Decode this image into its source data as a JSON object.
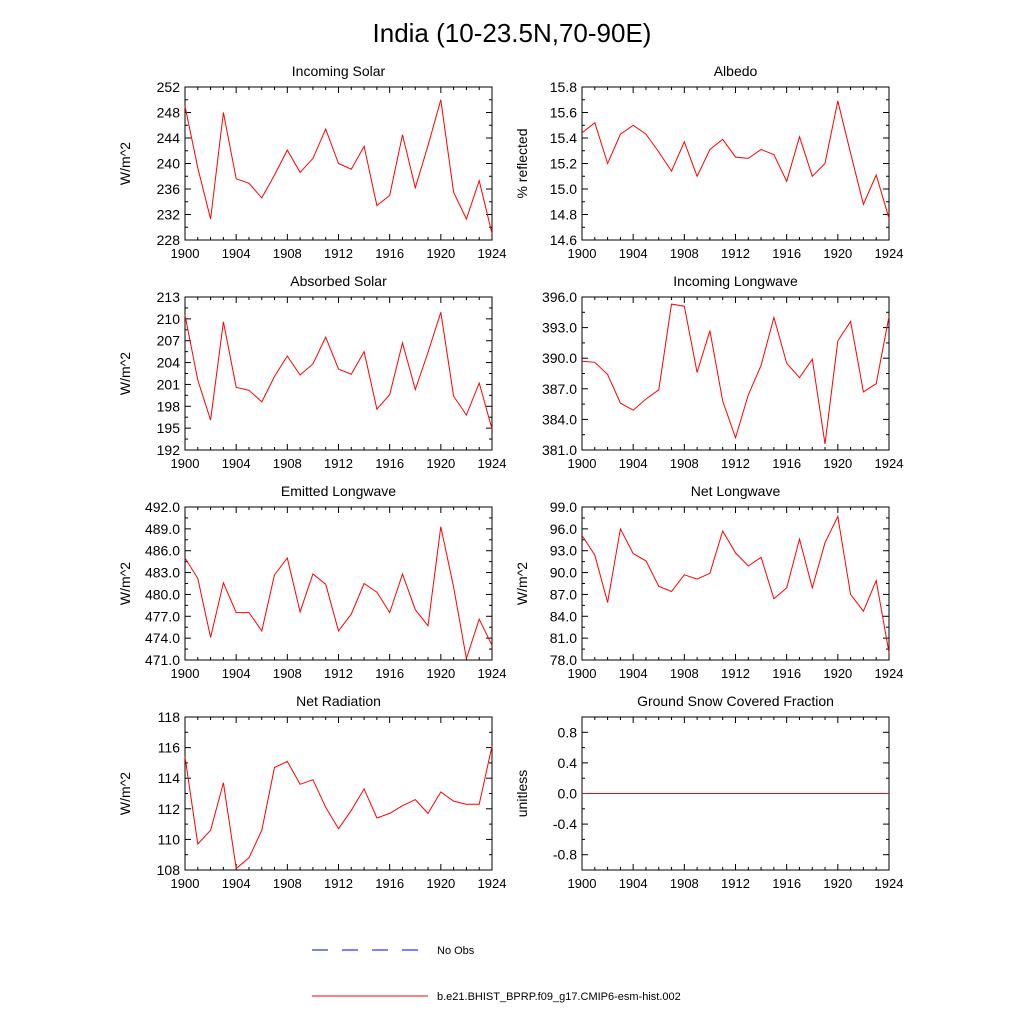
{
  "figure": {
    "title": "India (10-23.5N,70-90E)",
    "line_color": "#ff0000",
    "obs_color": "#0000ff"
  },
  "legend": {
    "obs_label": "No Obs",
    "model_label": "b.e21.BHIST_BPRP.f09_g17.CMIP6-esm-hist.002"
  },
  "chart_data": [
    {
      "type": "line",
      "title": "Incoming Solar",
      "ylabel": "W/m^2",
      "xlabel": "",
      "xlim": [
        1900,
        1924
      ],
      "ylim": [
        228,
        252
      ],
      "xticks": [
        "1900",
        "1904",
        "1908",
        "1912",
        "1916",
        "1920",
        "1924"
      ],
      "yticks": [
        "228",
        "232",
        "236",
        "240",
        "244",
        "248",
        "252"
      ],
      "x": [
        1900,
        1901,
        1902,
        1903,
        1904,
        1905,
        1906,
        1907,
        1908,
        1909,
        1910,
        1911,
        1912,
        1913,
        1914,
        1915,
        1916,
        1917,
        1918,
        1919,
        1920,
        1921,
        1922,
        1923,
        1924
      ],
      "values": [
        249.0,
        239.3,
        231.3,
        248.0,
        237.6,
        236.9,
        234.6,
        238.2,
        242.1,
        238.6,
        240.8,
        245.4,
        240.0,
        239.1,
        242.7,
        233.4,
        235.0,
        244.5,
        236.2,
        242.8,
        250.0,
        235.5,
        231.3,
        237.3,
        229.0
      ]
    },
    {
      "type": "line",
      "title": "Albedo",
      "ylabel": "% reflected",
      "xlabel": "",
      "xlim": [
        1900,
        1924
      ],
      "ylim": [
        14.6,
        15.8
      ],
      "xticks": [
        "1900",
        "1904",
        "1908",
        "1912",
        "1916",
        "1920",
        "1924"
      ],
      "yticks": [
        "14.6",
        "14.8",
        "15.0",
        "15.2",
        "15.4",
        "15.6",
        "15.8"
      ],
      "x": [
        1900,
        1901,
        1902,
        1903,
        1904,
        1905,
        1906,
        1907,
        1908,
        1909,
        1910,
        1911,
        1912,
        1913,
        1914,
        1915,
        1916,
        1917,
        1918,
        1919,
        1920,
        1921,
        1922,
        1923,
        1924
      ],
      "values": [
        15.44,
        15.52,
        15.2,
        15.43,
        15.5,
        15.43,
        15.29,
        15.14,
        15.37,
        15.1,
        15.31,
        15.39,
        15.25,
        15.24,
        15.31,
        15.27,
        15.06,
        15.41,
        15.1,
        15.2,
        15.69,
        15.28,
        14.88,
        15.11,
        14.77
      ]
    },
    {
      "type": "line",
      "title": "Absorbed Solar",
      "ylabel": "W/m^2",
      "xlabel": "",
      "xlim": [
        1900,
        1924
      ],
      "ylim": [
        192,
        213
      ],
      "xticks": [
        "1900",
        "1904",
        "1908",
        "1912",
        "1916",
        "1920",
        "1924"
      ],
      "yticks": [
        "192",
        "195",
        "198",
        "201",
        "204",
        "207",
        "210",
        "213"
      ],
      "x": [
        1900,
        1901,
        1902,
        1903,
        1904,
        1905,
        1906,
        1907,
        1908,
        1909,
        1910,
        1911,
        1912,
        1913,
        1914,
        1915,
        1916,
        1917,
        1918,
        1919,
        1920,
        1921,
        1922,
        1923,
        1924
      ],
      "values": [
        210.5,
        201.6,
        196.1,
        209.6,
        200.6,
        200.2,
        198.6,
        202.1,
        204.9,
        202.3,
        203.8,
        207.5,
        203.1,
        202.4,
        205.5,
        197.6,
        199.6,
        206.7,
        200.3,
        205.4,
        210.9,
        199.4,
        196.8,
        201.2,
        194.9
      ]
    },
    {
      "type": "line",
      "title": "Incoming Longwave",
      "ylabel": "",
      "xlabel": "",
      "xlim": [
        1900,
        1924
      ],
      "ylim": [
        381.0,
        396.0
      ],
      "xticks": [
        "1900",
        "1904",
        "1908",
        "1912",
        "1916",
        "1920",
        "1924"
      ],
      "yticks": [
        "381.0",
        "384.0",
        "387.0",
        "390.0",
        "393.0",
        "396.0"
      ],
      "x": [
        1900,
        1901,
        1902,
        1903,
        1904,
        1905,
        1906,
        1907,
        1908,
        1909,
        1910,
        1911,
        1912,
        1913,
        1914,
        1915,
        1916,
        1917,
        1918,
        1919,
        1920,
        1921,
        1922,
        1923,
        1924
      ],
      "values": [
        389.7,
        389.6,
        388.4,
        385.6,
        384.9,
        386.0,
        386.9,
        395.3,
        395.1,
        388.6,
        392.7,
        385.8,
        382.2,
        386.4,
        389.3,
        394.0,
        389.5,
        388.1,
        389.9,
        381.6,
        391.7,
        393.6,
        386.7,
        387.5,
        394.1
      ]
    },
    {
      "type": "line",
      "title": "Emitted Longwave",
      "ylabel": "W/m^2",
      "xlabel": "",
      "xlim": [
        1900,
        1924
      ],
      "ylim": [
        471.0,
        492.0
      ],
      "xticks": [
        "1900",
        "1904",
        "1908",
        "1912",
        "1916",
        "1920",
        "1924"
      ],
      "yticks": [
        "471.0",
        "474.0",
        "477.0",
        "480.0",
        "483.0",
        "486.0",
        "489.0",
        "492.0"
      ],
      "x": [
        1900,
        1901,
        1902,
        1903,
        1904,
        1905,
        1906,
        1907,
        1908,
        1909,
        1910,
        1911,
        1912,
        1913,
        1914,
        1915,
        1916,
        1917,
        1918,
        1919,
        1920,
        1921,
        1922,
        1923,
        1924
      ],
      "values": [
        485.0,
        482.2,
        474.1,
        481.6,
        477.5,
        477.5,
        475.0,
        482.7,
        485.0,
        477.6,
        482.8,
        481.4,
        475.0,
        477.3,
        481.5,
        480.3,
        477.5,
        482.8,
        477.9,
        475.7,
        489.3,
        481.0,
        471.2,
        476.6,
        473.0
      ]
    },
    {
      "type": "line",
      "title": "Net Longwave",
      "ylabel": "W/m^2",
      "xlabel": "",
      "xlim": [
        1900,
        1924
      ],
      "ylim": [
        78.0,
        99.0
      ],
      "xticks": [
        "1900",
        "1904",
        "1908",
        "1912",
        "1916",
        "1920",
        "1924"
      ],
      "yticks": [
        "78.0",
        "81.0",
        "84.0",
        "87.0",
        "90.0",
        "93.0",
        "96.0",
        "99.0"
      ],
      "x": [
        1900,
        1901,
        1902,
        1903,
        1904,
        1905,
        1906,
        1907,
        1908,
        1909,
        1910,
        1911,
        1912,
        1913,
        1914,
        1915,
        1916,
        1917,
        1918,
        1919,
        1920,
        1921,
        1922,
        1923,
        1924
      ],
      "values": [
        95.1,
        92.4,
        85.9,
        96.0,
        92.6,
        91.6,
        88.1,
        87.4,
        89.7,
        89.1,
        89.9,
        95.7,
        92.7,
        90.9,
        92.1,
        86.4,
        87.9,
        94.6,
        87.9,
        94.1,
        97.7,
        87.0,
        84.7,
        88.9,
        79.0
      ]
    },
    {
      "type": "line",
      "title": "Net Radiation",
      "ylabel": "W/m^2",
      "xlabel": "",
      "xlim": [
        1900,
        1924
      ],
      "ylim": [
        108,
        118
      ],
      "xticks": [
        "1900",
        "1904",
        "1908",
        "1912",
        "1916",
        "1920",
        "1924"
      ],
      "yticks": [
        "108",
        "110",
        "112",
        "114",
        "116",
        "118"
      ],
      "x": [
        1900,
        1901,
        1902,
        1903,
        1904,
        1905,
        1906,
        1907,
        1908,
        1909,
        1910,
        1911,
        1912,
        1913,
        1914,
        1915,
        1916,
        1917,
        1918,
        1919,
        1920,
        1921,
        1922,
        1923,
        1924
      ],
      "values": [
        115.4,
        109.7,
        110.6,
        113.7,
        108.1,
        108.8,
        110.6,
        114.7,
        115.1,
        113.6,
        113.9,
        112.1,
        110.7,
        111.9,
        113.3,
        111.4,
        111.7,
        112.2,
        112.6,
        111.7,
        113.1,
        112.5,
        112.3,
        112.3,
        116.1
      ]
    },
    {
      "type": "line",
      "title": "Ground Snow Covered Fraction",
      "ylabel": "unitless",
      "xlabel": "",
      "xlim": [
        1900,
        1924
      ],
      "ylim": [
        -1.0,
        1.0
      ],
      "xticks": [
        "1900",
        "1904",
        "1908",
        "1912",
        "1916",
        "1920",
        "1924"
      ],
      "yticks": [
        "-0.8",
        "-0.4",
        "0.0",
        "0.4",
        "0.8"
      ],
      "x": [
        1900,
        1901,
        1902,
        1903,
        1904,
        1905,
        1906,
        1907,
        1908,
        1909,
        1910,
        1911,
        1912,
        1913,
        1914,
        1915,
        1916,
        1917,
        1918,
        1919,
        1920,
        1921,
        1922,
        1923,
        1924
      ],
      "values": [
        0,
        0,
        0,
        0,
        0,
        0,
        0,
        0,
        0,
        0,
        0,
        0,
        0,
        0,
        0,
        0,
        0,
        0,
        0,
        0,
        0,
        0,
        0,
        0,
        0
      ]
    }
  ]
}
